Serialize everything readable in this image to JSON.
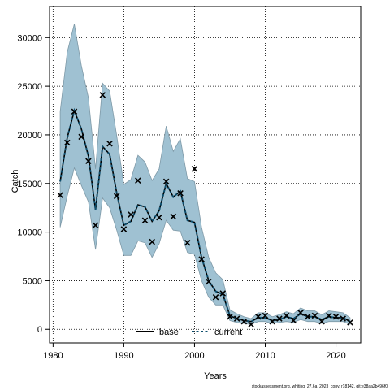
{
  "chart_data": {
    "type": "line",
    "title": "",
    "xlabel": "Years",
    "ylabel": "Catch",
    "xlim": [
      1979.5,
      2023.5
    ],
    "ylim": [
      -1400,
      33200
    ],
    "x_ticks": [
      1980,
      1990,
      2000,
      2010,
      2020
    ],
    "y_ticks": [
      0,
      5000,
      10000,
      15000,
      20000,
      25000,
      30000
    ],
    "grid": true,
    "legend_position": "bottom-center",
    "footer": "stockassessment.org, whiting_27.6a_2023_copy, r18142, git:e38aa2b496f0",
    "colors": {
      "band": "#9fc1d2",
      "band_edge": "#7f9aa8",
      "current": "#0f4f6e",
      "base": "#000000",
      "observed": "#000000"
    },
    "observed": {
      "marker": "x",
      "x": [
        1981,
        1982,
        1983,
        1984,
        1985,
        1986,
        1987,
        1988,
        1989,
        1990,
        1991,
        1992,
        1993,
        1994,
        1995,
        1996,
        1997,
        1998,
        1999,
        2000,
        2001,
        2002,
        2003,
        2004,
        2005,
        2006,
        2007,
        2008,
        2009,
        2010,
        2011,
        2012,
        2013,
        2014,
        2015,
        2016,
        2017,
        2018,
        2019,
        2020,
        2021,
        2022
      ],
      "y": [
        13800,
        19200,
        22400,
        19800,
        17300,
        10700,
        24100,
        19100,
        13700,
        10300,
        11800,
        15300,
        11200,
        9000,
        11500,
        15200,
        11600,
        14000,
        8900,
        16500,
        7200,
        4900,
        3300,
        3700,
        1300,
        1100,
        800,
        500,
        1300,
        1400,
        800,
        1100,
        1400,
        900,
        1700,
        1300,
        1400,
        800,
        1400,
        1300,
        1100,
        700
      ]
    },
    "series": [
      {
        "name": "base",
        "color": "#000000",
        "x": [
          1981,
          1982,
          1983,
          1984,
          1985,
          1986,
          1987,
          1988,
          1989,
          1990,
          1991,
          1992,
          1993,
          1994,
          1995,
          1996,
          1997,
          1998,
          1999,
          2000,
          2001,
          2002,
          2003,
          2004,
          2005,
          2006,
          2007,
          2008,
          2009,
          2010,
          2011,
          2012,
          2013,
          2014,
          2015,
          2016,
          2017,
          2018,
          2019,
          2020,
          2021,
          2022
        ],
        "y": [
          15200,
          19700,
          22500,
          20600,
          17800,
          12300,
          18800,
          18000,
          14000,
          10700,
          11100,
          12800,
          12600,
          11100,
          12200,
          15000,
          13600,
          14200,
          11200,
          11000,
          7400,
          5000,
          3900,
          3600,
          1400,
          1100,
          900,
          800,
          1200,
          1200,
          900,
          1000,
          1300,
          1100,
          1600,
          1300,
          1300,
          1000,
          1300,
          1200,
          1200,
          800
        ]
      },
      {
        "name": "current",
        "color": "#0f4f6e",
        "x": [
          1981,
          1982,
          1983,
          1984,
          1985,
          1986,
          1987,
          1988,
          1989,
          1990,
          1991,
          1992,
          1993,
          1994,
          1995,
          1996,
          1997,
          1998,
          1999,
          2000,
          2001,
          2002,
          2003,
          2004,
          2005,
          2006,
          2007,
          2008,
          2009,
          2010,
          2011,
          2012,
          2013,
          2014,
          2015,
          2016,
          2017,
          2018,
          2019,
          2020,
          2021,
          2022
        ],
        "y": [
          15200,
          19700,
          22500,
          20600,
          17800,
          12300,
          18800,
          18000,
          14000,
          10700,
          11100,
          12800,
          12600,
          11100,
          12200,
          15000,
          13600,
          14200,
          11200,
          11000,
          7400,
          5000,
          3900,
          3600,
          1400,
          1100,
          900,
          800,
          1200,
          1200,
          900,
          1000,
          1300,
          1100,
          1600,
          1300,
          1300,
          1000,
          1300,
          1200,
          1200,
          800
        ],
        "ci_lower": [
          10500,
          13700,
          16600,
          14800,
          13100,
          8200,
          13500,
          12500,
          10200,
          7600,
          7600,
          9100,
          8900,
          7400,
          8800,
          11200,
          10200,
          10100,
          7900,
          7700,
          5000,
          3300,
          2500,
          2500,
          900,
          700,
          600,
          500,
          800,
          800,
          600,
          700,
          800,
          700,
          1000,
          800,
          800,
          600,
          800,
          800,
          800,
          500
        ],
        "ci_upper": [
          22400,
          28500,
          31400,
          27100,
          23800,
          16500,
          25300,
          24500,
          19900,
          14900,
          15400,
          17900,
          17200,
          15300,
          16500,
          20900,
          18300,
          19600,
          15500,
          15200,
          10500,
          7400,
          5800,
          5100,
          2000,
          1600,
          1300,
          1100,
          1700,
          1700,
          1300,
          1500,
          1800,
          1600,
          2200,
          1900,
          1900,
          1500,
          1900,
          1800,
          1700,
          1200
        ]
      }
    ]
  }
}
